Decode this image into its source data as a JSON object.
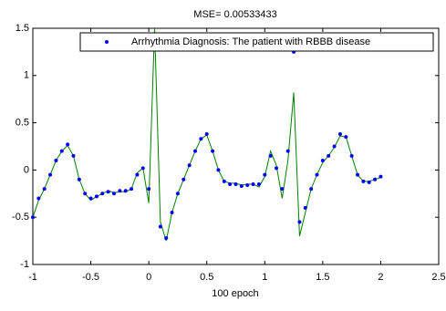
{
  "chart_data": {
    "type": "line",
    "title": "MSE= 0.00533433",
    "x_label": "100 epoch",
    "x": [
      -1,
      -0.95,
      -0.9,
      -0.85,
      -0.8,
      -0.75,
      -0.7,
      -0.65,
      -0.6,
      -0.55,
      -0.5,
      -0.45,
      -0.4,
      -0.35,
      -0.3,
      -0.25,
      -0.2,
      -0.15,
      -0.1,
      -0.05,
      0,
      0.05,
      0.1,
      0.15,
      0.2,
      0.25,
      0.3,
      0.35,
      0.4,
      0.45,
      0.5,
      0.55,
      0.6,
      0.65,
      0.7,
      0.75,
      0.8,
      0.85,
      0.9,
      0.95,
      1,
      1.05,
      1.1,
      1.15,
      1.2,
      1.25,
      1.3,
      1.35,
      1.4,
      1.45,
      1.5,
      1.55,
      1.6,
      1.65,
      1.7,
      1.75,
      1.8,
      1.85,
      1.9,
      1.95,
      2
    ],
    "series": [
      {
        "name": "Arrhythmia Diagnosis: The patient with RBBB disease",
        "color": "#0000ff",
        "marker": "dot",
        "values": [
          -0.5,
          -0.3,
          -0.2,
          -0.05,
          0.1,
          0.2,
          0.27,
          0.15,
          -0.1,
          -0.25,
          -0.3,
          -0.28,
          -0.25,
          -0.23,
          -0.25,
          -0.22,
          -0.22,
          -0.2,
          -0.05,
          0.02,
          -0.2,
          1.35,
          -0.6,
          -0.72,
          -0.45,
          -0.25,
          -0.1,
          0.05,
          0.2,
          0.33,
          0.38,
          0.2,
          0.0,
          -0.12,
          -0.15,
          -0.15,
          -0.17,
          -0.16,
          -0.15,
          -0.15,
          -0.05,
          0.15,
          0.02,
          -0.2,
          0.2,
          1.25,
          -0.55,
          -0.4,
          -0.2,
          -0.05,
          0.1,
          0.15,
          0.25,
          0.38,
          0.35,
          0.15,
          -0.05,
          -0.12,
          -0.13,
          -0.1,
          -0.07
        ]
      },
      {
        "color": "#008000",
        "marker": "line",
        "values": [
          -0.5,
          -0.32,
          -0.2,
          -0.05,
          0.1,
          0.2,
          0.26,
          0.15,
          -0.1,
          -0.25,
          -0.32,
          -0.28,
          -0.25,
          -0.22,
          -0.24,
          -0.23,
          -0.23,
          -0.2,
          -0.03,
          0.02,
          -0.35,
          1.5,
          -0.55,
          -0.75,
          -0.45,
          -0.25,
          -0.1,
          0.05,
          0.2,
          0.33,
          0.37,
          0.2,
          0.0,
          -0.12,
          -0.14,
          -0.14,
          -0.16,
          -0.15,
          -0.15,
          -0.18,
          -0.07,
          0.2,
          0.05,
          -0.3,
          0.1,
          0.82,
          -0.7,
          -0.45,
          -0.2,
          -0.05,
          0.08,
          0.15,
          0.24,
          0.36,
          0.35,
          0.15,
          -0.05,
          -0.12,
          -0.12,
          -0.1,
          -0.08
        ]
      }
    ],
    "xlim": [
      -1,
      2.5
    ],
    "ylim": [
      -1,
      1.5
    ],
    "xticks": [
      -1,
      -0.5,
      0,
      0.5,
      1,
      1.5,
      2,
      2.5
    ],
    "yticks": [
      -1,
      -0.5,
      0,
      0.5,
      1,
      1.5
    ],
    "grid": false,
    "legend": "top-right"
  }
}
